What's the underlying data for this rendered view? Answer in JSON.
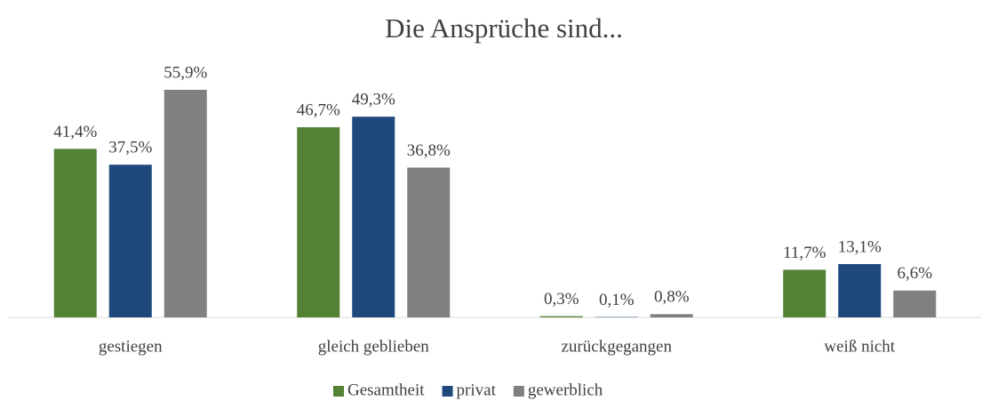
{
  "chart_data": {
    "type": "bar",
    "title": "Die Ansprüche sind...",
    "categories": [
      "gestiegen",
      "gleich geblieben",
      "zurückgegangen",
      "weiß nicht"
    ],
    "series": [
      {
        "name": "Gesamtheit",
        "color": "#538135",
        "values": [
          41.4,
          46.7,
          0.3,
          11.7
        ],
        "value_labels": [
          "41,4%",
          "46,7%",
          "0,3%",
          "11,7%"
        ]
      },
      {
        "name": "privat",
        "color": "#1f497d",
        "values": [
          37.5,
          49.3,
          0.1,
          13.1
        ],
        "value_labels": [
          "37,5%",
          "49,3%",
          "0,1%",
          "13,1%"
        ]
      },
      {
        "name": "gewerblich",
        "color": "#808080",
        "values": [
          55.9,
          36.8,
          0.8,
          6.6
        ],
        "value_labels": [
          "55,9%",
          "36,8%",
          "0,8%",
          "6,6%"
        ]
      }
    ],
    "legend": "bottom"
  }
}
